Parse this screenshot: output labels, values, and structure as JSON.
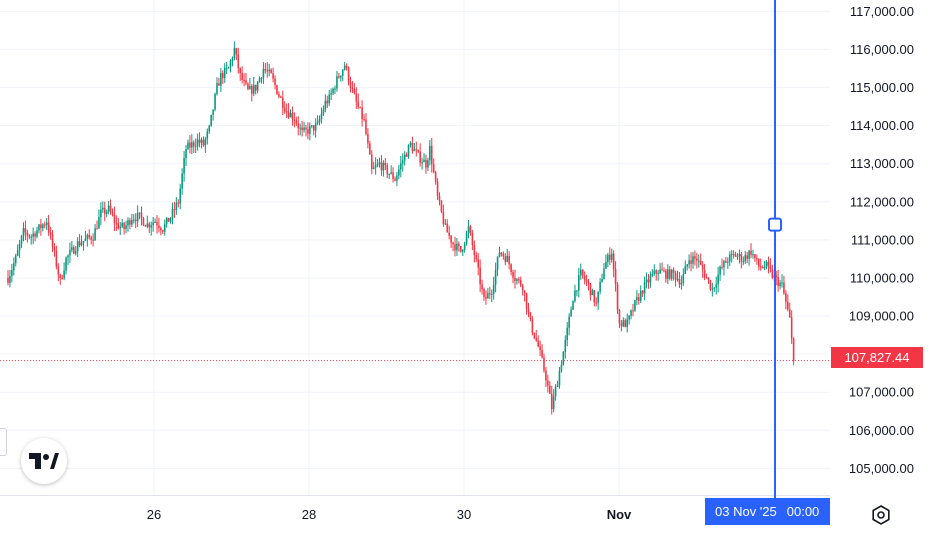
{
  "chart_data": {
    "type": "candlestick",
    "symbol_price_label": "107,827.44",
    "colors": {
      "up": "#089981",
      "down": "#f23645",
      "crosshair": "#2962ff",
      "grid": "#f0f3fa",
      "last_price_line": "#f23645"
    },
    "y_axis": {
      "ticks": [
        {
          "value": 105000,
          "label": "105,000.00"
        },
        {
          "value": 106000,
          "label": "106,000.00"
        },
        {
          "value": 107000,
          "label": "107,000.00"
        },
        {
          "value": 108000,
          "label": "108,000.00"
        },
        {
          "value": 109000,
          "label": "109,000.00"
        },
        {
          "value": 110000,
          "label": "110,000.00"
        },
        {
          "value": 111000,
          "label": "111,000.00"
        },
        {
          "value": 112000,
          "label": "112,000.00"
        },
        {
          "value": 113000,
          "label": "113,000.00"
        },
        {
          "value": 114000,
          "label": "114,000.00"
        },
        {
          "value": 115000,
          "label": "115,000.00"
        },
        {
          "value": 116000,
          "label": "116,000.00"
        },
        {
          "value": 117000,
          "label": "117,000.00"
        }
      ],
      "range": [
        104300,
        117300
      ]
    },
    "x_axis": {
      "ticks": [
        {
          "label": "26",
          "bold": false
        },
        {
          "label": "28",
          "bold": false
        },
        {
          "label": "30",
          "bold": false
        },
        {
          "label": "Nov",
          "bold": true
        }
      ]
    },
    "crosshair": {
      "date_label": "03 Nov '25",
      "time_label": "00:00",
      "price": 111400
    },
    "last_price": 107827.44,
    "path": [
      [
        0,
        110000
      ],
      [
        4,
        110500
      ],
      [
        8,
        111200
      ],
      [
        12,
        111100
      ],
      [
        16,
        111300
      ],
      [
        20,
        111500
      ],
      [
        24,
        110600
      ],
      [
        27,
        109900
      ],
      [
        30,
        110500
      ],
      [
        33,
        110700
      ],
      [
        36,
        110900
      ],
      [
        40,
        111000
      ],
      [
        44,
        111100
      ],
      [
        48,
        111700
      ],
      [
        52,
        111800
      ],
      [
        56,
        111400
      ],
      [
        60,
        111300
      ],
      [
        64,
        111600
      ],
      [
        68,
        111600
      ],
      [
        72,
        111400
      ],
      [
        76,
        111500
      ],
      [
        80,
        111300
      ],
      [
        84,
        111600
      ],
      [
        88,
        112000
      ],
      [
        92,
        113400
      ],
      [
        95,
        113500
      ],
      [
        98,
        113600
      ],
      [
        101,
        113500
      ],
      [
        104,
        113900
      ],
      [
        108,
        115000
      ],
      [
        110,
        115300
      ],
      [
        114,
        115500
      ],
      [
        117,
        116000
      ],
      [
        120,
        115300
      ],
      [
        124,
        114900
      ],
      [
        128,
        115000
      ],
      [
        132,
        115500
      ],
      [
        136,
        115300
      ],
      [
        140,
        114800
      ],
      [
        144,
        114400
      ],
      [
        148,
        114200
      ],
      [
        152,
        113800
      ],
      [
        156,
        113900
      ],
      [
        160,
        114000
      ],
      [
        164,
        114600
      ],
      [
        166,
        114700
      ],
      [
        170,
        115200
      ],
      [
        174,
        115600
      ],
      [
        178,
        114900
      ],
      [
        180,
        114600
      ],
      [
        184,
        114100
      ],
      [
        188,
        112800
      ],
      [
        192,
        113000
      ],
      [
        196,
        112800
      ],
      [
        200,
        112600
      ],
      [
        204,
        113100
      ],
      [
        208,
        113500
      ],
      [
        212,
        113200
      ],
      [
        216,
        113000
      ],
      [
        218,
        113400
      ],
      [
        222,
        112100
      ],
      [
        226,
        111300
      ],
      [
        230,
        110900
      ],
      [
        234,
        110700
      ],
      [
        238,
        111300
      ],
      [
        242,
        110400
      ],
      [
        246,
        109400
      ],
      [
        250,
        109700
      ],
      [
        254,
        110700
      ],
      [
        258,
        110500
      ],
      [
        262,
        110000
      ],
      [
        266,
        109800
      ],
      [
        270,
        108800
      ],
      [
        274,
        108200
      ],
      [
        278,
        107400
      ],
      [
        281,
        106600
      ],
      [
        284,
        107300
      ],
      [
        288,
        108300
      ],
      [
        292,
        109500
      ],
      [
        296,
        110100
      ],
      [
        300,
        109800
      ],
      [
        304,
        109300
      ],
      [
        308,
        110300
      ],
      [
        312,
        110700
      ],
      [
        316,
        108800
      ],
      [
        320,
        108800
      ],
      [
        324,
        109300
      ],
      [
        328,
        109700
      ],
      [
        332,
        110000
      ],
      [
        336,
        110200
      ],
      [
        340,
        110100
      ],
      [
        344,
        110100
      ],
      [
        348,
        109900
      ],
      [
        352,
        110500
      ],
      [
        356,
        110500
      ],
      [
        360,
        110100
      ],
      [
        364,
        109700
      ],
      [
        368,
        110200
      ],
      [
        372,
        110500
      ],
      [
        376,
        110600
      ],
      [
        380,
        110500
      ],
      [
        384,
        110700
      ],
      [
        388,
        110300
      ],
      [
        392,
        110300
      ],
      [
        396,
        110000
      ],
      [
        400,
        109800
      ],
      [
        404,
        108900
      ],
      [
        406,
        107827
      ]
    ]
  }
}
